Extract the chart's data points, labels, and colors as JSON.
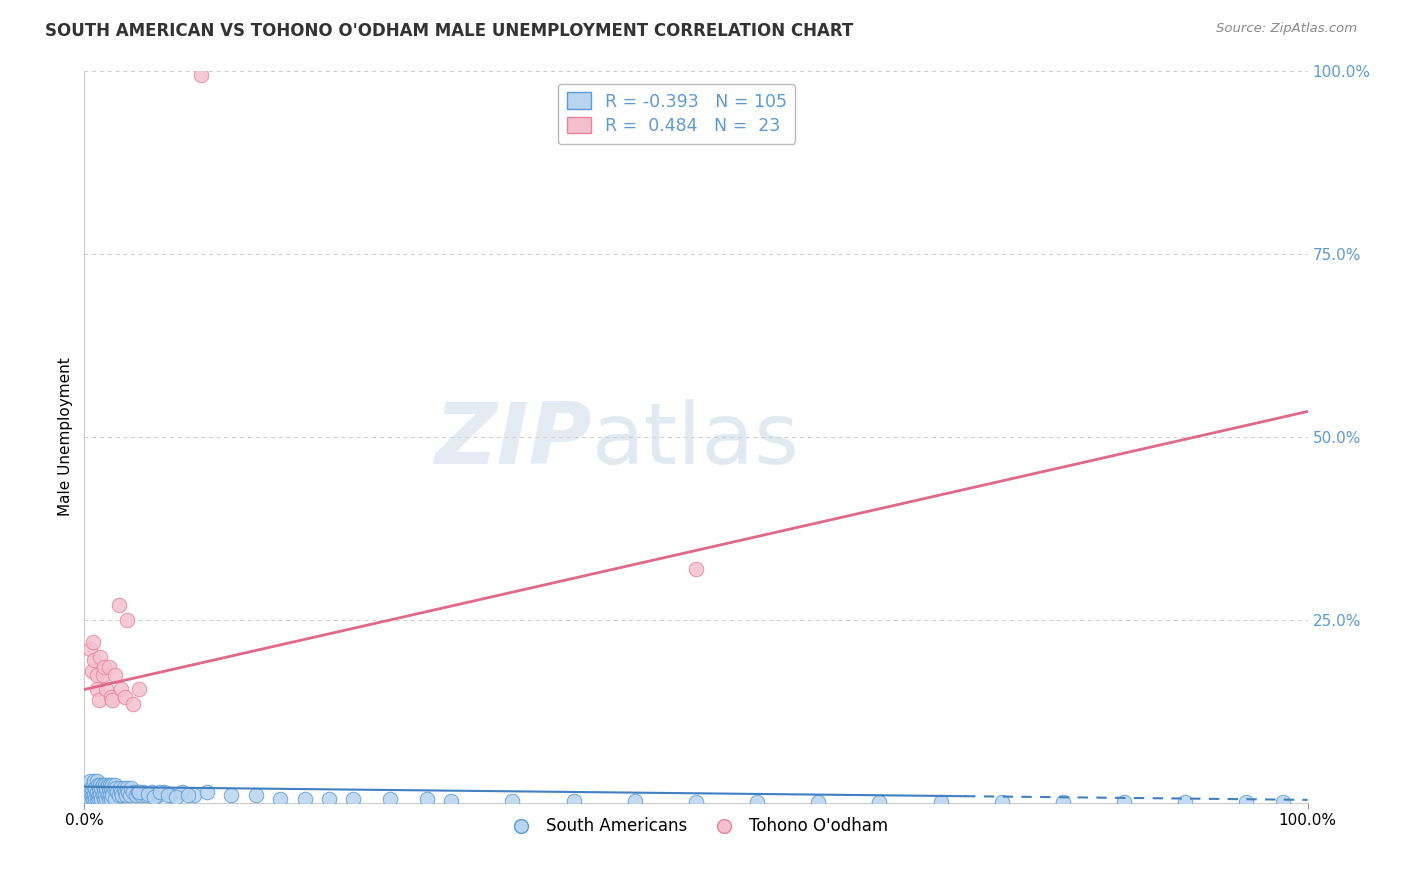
{
  "title": "SOUTH AMERICAN VS TOHONO O'ODHAM MALE UNEMPLOYMENT CORRELATION CHART",
  "source": "Source: ZipAtlas.com",
  "ylabel": "Male Unemployment",
  "xlim": [
    0.0,
    1.0
  ],
  "ylim": [
    0.0,
    1.0
  ],
  "ytick_positions_right": [
    0.25,
    0.5,
    0.75,
    1.0
  ],
  "ytick_labels_right": [
    "25.0%",
    "50.0%",
    "75.0%",
    "100.0%"
  ],
  "blue_color": "#5b9bd5",
  "pink_color": "#e8849a",
  "blue_scatter_face": "#b8d4f0",
  "pink_scatter_face": "#f4c0cf",
  "blue_line_color": "#4080c0",
  "pink_line_color": "#e06888",
  "watermark_zip": "ZIP",
  "watermark_atlas": "atlas",
  "legend_text_blue": "R = -0.393   N = 105",
  "legend_text_pink": "R =  0.484   N =  23",
  "legend_blue_face": "#b8d4f0",
  "legend_pink_face": "#f4c0cf",
  "label_south": "South Americans",
  "label_tohono": "Tohono O'odham",
  "grid_color": "#cccccc",
  "bg_color": "#ffffff",
  "blue_trendline_intercept": 0.022,
  "blue_trendline_slope": -0.018,
  "pink_trendline_intercept": 0.155,
  "pink_trendline_slope": 0.38,
  "sa_x": [
    0.001,
    0.002,
    0.003,
    0.003,
    0.004,
    0.004,
    0.005,
    0.005,
    0.005,
    0.006,
    0.006,
    0.007,
    0.007,
    0.008,
    0.008,
    0.009,
    0.009,
    0.01,
    0.01,
    0.01,
    0.011,
    0.011,
    0.012,
    0.012,
    0.013,
    0.013,
    0.014,
    0.014,
    0.015,
    0.015,
    0.016,
    0.016,
    0.017,
    0.017,
    0.018,
    0.018,
    0.019,
    0.019,
    0.02,
    0.02,
    0.021,
    0.021,
    0.022,
    0.022,
    0.023,
    0.023,
    0.024,
    0.025,
    0.025,
    0.026,
    0.027,
    0.028,
    0.029,
    0.03,
    0.031,
    0.032,
    0.033,
    0.034,
    0.035,
    0.036,
    0.037,
    0.038,
    0.04,
    0.042,
    0.044,
    0.046,
    0.048,
    0.05,
    0.055,
    0.06,
    0.065,
    0.07,
    0.08,
    0.09,
    0.1,
    0.12,
    0.14,
    0.16,
    0.18,
    0.2,
    0.22,
    0.25,
    0.28,
    0.3,
    0.35,
    0.4,
    0.45,
    0.5,
    0.55,
    0.6,
    0.65,
    0.7,
    0.75,
    0.8,
    0.85,
    0.9,
    0.95,
    0.98,
    0.045,
    0.052,
    0.057,
    0.062,
    0.068,
    0.075,
    0.085
  ],
  "sa_y": [
    0.015,
    0.01,
    0.02,
    0.005,
    0.025,
    0.008,
    0.03,
    0.01,
    0.005,
    0.02,
    0.008,
    0.025,
    0.005,
    0.03,
    0.01,
    0.02,
    0.005,
    0.03,
    0.015,
    0.005,
    0.025,
    0.008,
    0.02,
    0.005,
    0.025,
    0.01,
    0.02,
    0.005,
    0.025,
    0.01,
    0.02,
    0.005,
    0.025,
    0.01,
    0.02,
    0.005,
    0.025,
    0.01,
    0.02,
    0.005,
    0.025,
    0.01,
    0.02,
    0.005,
    0.025,
    0.01,
    0.02,
    0.025,
    0.005,
    0.02,
    0.015,
    0.01,
    0.02,
    0.015,
    0.01,
    0.02,
    0.015,
    0.01,
    0.02,
    0.015,
    0.01,
    0.02,
    0.015,
    0.01,
    0.015,
    0.01,
    0.015,
    0.01,
    0.015,
    0.01,
    0.015,
    0.01,
    0.015,
    0.01,
    0.015,
    0.01,
    0.01,
    0.005,
    0.005,
    0.005,
    0.005,
    0.005,
    0.005,
    0.003,
    0.003,
    0.002,
    0.002,
    0.001,
    0.001,
    0.001,
    0.001,
    0.001,
    0.001,
    0.001,
    0.001,
    0.001,
    0.001,
    0.001,
    0.015,
    0.012,
    0.008,
    0.015,
    0.01,
    0.008,
    0.01
  ],
  "to_x": [
    0.005,
    0.006,
    0.007,
    0.008,
    0.01,
    0.01,
    0.012,
    0.013,
    0.015,
    0.016,
    0.018,
    0.02,
    0.022,
    0.023,
    0.025,
    0.028,
    0.03,
    0.033,
    0.035,
    0.04,
    0.045,
    0.095,
    0.5
  ],
  "to_y": [
    0.21,
    0.18,
    0.22,
    0.195,
    0.155,
    0.175,
    0.14,
    0.2,
    0.175,
    0.185,
    0.155,
    0.185,
    0.145,
    0.14,
    0.175,
    0.27,
    0.155,
    0.145,
    0.25,
    0.135,
    0.155,
    0.995,
    0.32
  ]
}
